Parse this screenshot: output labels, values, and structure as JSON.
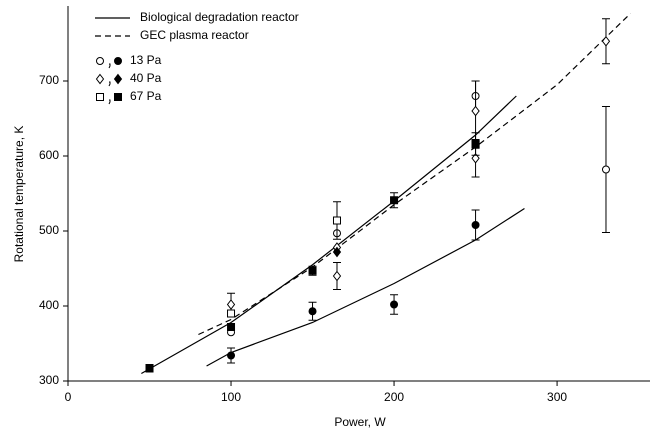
{
  "chart_data": {
    "type": "scatter",
    "x_label": "Power, W",
    "y_label": "Rotational temperature, K",
    "xlim": [
      0,
      357
    ],
    "ylim": [
      300,
      800
    ],
    "xticks": [
      0,
      100,
      200,
      300
    ],
    "yticks": [
      300,
      400,
      500,
      600,
      700
    ],
    "color": "#000000",
    "lines": [
      {
        "name": "Biological degradation reactor",
        "dashed": false,
        "curves": [
          {
            "x": [
              45,
              100,
              150,
              200,
              250,
              275
            ],
            "y": [
              310,
              378,
              455,
              540,
              628,
              680
            ]
          },
          {
            "x": [
              85,
              100,
              150,
              200,
              250,
              280
            ],
            "y": [
              320,
              338,
              378,
              430,
              488,
              530
            ]
          }
        ]
      },
      {
        "name": "GEC plasma reactor",
        "dashed": true,
        "curves": [
          {
            "x": [
              80,
              100,
              150,
              200,
              250,
              300,
              345
            ],
            "y": [
              362,
              382,
              452,
              535,
              612,
              695,
              790
            ]
          }
        ]
      }
    ],
    "pressure_groups": [
      {
        "name": "13 Pa",
        "marker": "circle",
        "open": {
          "x": [
            100,
            165,
            250,
            330
          ],
          "values": [
            365,
            497,
            680,
            582
          ],
          "errors": [
            null,
            null,
            20,
            84
          ]
        },
        "filled": {
          "x": [
            100,
            150,
            200,
            250
          ],
          "values": [
            334,
            393,
            402,
            508
          ],
          "errors": [
            10,
            12,
            13,
            20
          ]
        }
      },
      {
        "name": "40 Pa",
        "marker": "diamond",
        "open": {
          "x": [
            100,
            165,
            165,
            250,
            250,
            330
          ],
          "values": [
            402,
            440,
            478,
            597,
            660,
            753
          ],
          "errors": [
            15,
            18,
            null,
            25,
            40,
            30
          ]
        },
        "filled": {
          "x": [
            165
          ],
          "values": [
            472
          ],
          "errors": [
            null
          ]
        }
      },
      {
        "name": "67 Pa",
        "marker": "square",
        "open": {
          "x": [
            100,
            165,
            250
          ],
          "values": [
            390,
            514,
            615
          ],
          "errors": [
            null,
            25,
            null
          ]
        },
        "filled": {
          "x": [
            50,
            100,
            150,
            200,
            250
          ],
          "values": [
            317,
            372,
            447,
            541,
            616
          ],
          "errors": [
            5,
            null,
            6,
            10,
            15
          ]
        }
      }
    ]
  }
}
